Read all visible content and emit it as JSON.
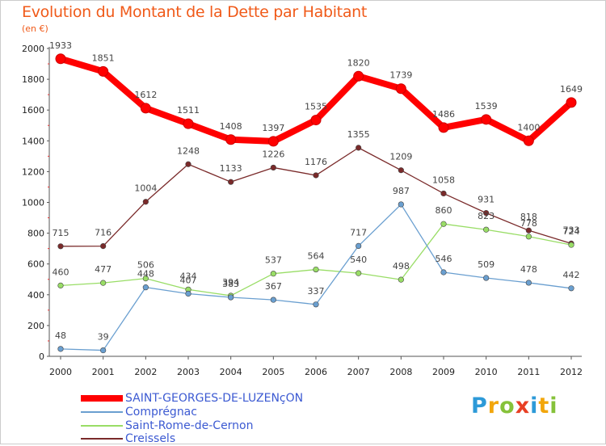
{
  "header": {
    "title": "Evolution du Montant de la Dette par Habitant",
    "subtitle": "(en €)"
  },
  "logo": {
    "letters": [
      "P",
      "r",
      "o",
      "x",
      "i",
      "t",
      "i"
    ],
    "colors": [
      "#2d9ad8",
      "#f2a60b",
      "#86c23a",
      "#e83f24",
      "#2d9ad8",
      "#f2a60b",
      "#86c23a"
    ]
  },
  "chart_data": {
    "type": "line",
    "x": [
      2000,
      2001,
      2002,
      2003,
      2004,
      2005,
      2006,
      2007,
      2008,
      2009,
      2010,
      2011,
      2012
    ],
    "ylim": [
      0,
      2000
    ],
    "yticks": [
      0,
      200,
      400,
      600,
      800,
      1000,
      1200,
      1400,
      1600,
      1800,
      2000
    ],
    "grid": false,
    "legend_position": "bottom",
    "series": [
      {
        "name": "SAINT-GEORGES-DE-LUZENçON",
        "color": "#ff0000",
        "values": [
          1933,
          1851,
          1612,
          1511,
          1408,
          1397,
          1535,
          1820,
          1739,
          1486,
          1539,
          1400,
          1649
        ]
      },
      {
        "name": "Comprégnac",
        "color": "#6a9fd0",
        "values": [
          48,
          39,
          448,
          407,
          383,
          367,
          337,
          717,
          987,
          546,
          509,
          478,
          442
        ]
      },
      {
        "name": "Saint-Rome-de-Cernon",
        "color": "#99dd66",
        "values": [
          460,
          477,
          506,
          434,
          394,
          537,
          564,
          540,
          498,
          860,
          823,
          778,
          724
        ]
      },
      {
        "name": "Creissels",
        "color": "#7a2a2a",
        "values": [
          715,
          716,
          1004,
          1248,
          1133,
          1226,
          1176,
          1355,
          1209,
          1058,
          931,
          818,
          733
        ]
      }
    ]
  }
}
